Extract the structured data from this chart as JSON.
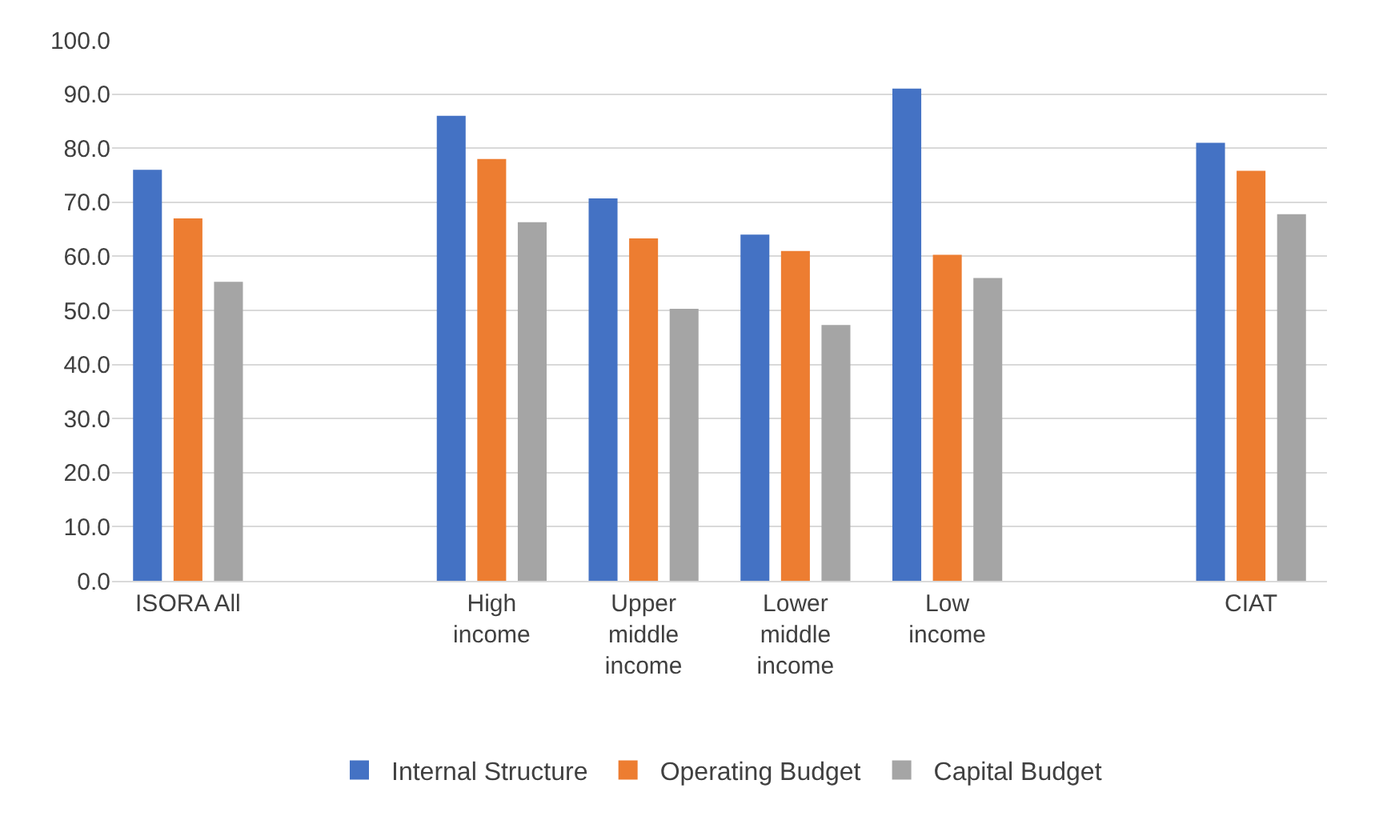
{
  "chart_data": {
    "type": "bar",
    "categories": [
      "ISORA All",
      null,
      "High income",
      "Upper middle income",
      "Lower middle income",
      "Low income",
      null,
      "CIAT"
    ],
    "series": [
      {
        "name": "Internal Structure",
        "color": "#4472c4",
        "values": [
          76,
          null,
          86,
          70.7,
          64,
          91,
          null,
          81
        ]
      },
      {
        "name": "Operating Budget",
        "color": "#ed7d31",
        "values": [
          67,
          null,
          78,
          63.3,
          61,
          60.3,
          null,
          75.8
        ]
      },
      {
        "name": "Capital Budget",
        "color": "#a5a5a5",
        "values": [
          55.3,
          null,
          66.3,
          50.3,
          47.3,
          56,
          null,
          67.8
        ]
      }
    ],
    "ylim": [
      0,
      100
    ],
    "yticks": [
      {
        "value": 0,
        "label": "0.0"
      },
      {
        "value": 10,
        "label": "10.0"
      },
      {
        "value": 20,
        "label": "20.0"
      },
      {
        "value": 30,
        "label": "30.0"
      },
      {
        "value": 40,
        "label": "40.0"
      },
      {
        "value": 50,
        "label": "50.0"
      },
      {
        "value": 60,
        "label": "60.0"
      },
      {
        "value": 70,
        "label": "70.0"
      },
      {
        "value": 80,
        "label": "80.0"
      },
      {
        "value": 90,
        "label": "90.0"
      },
      {
        "value": 100,
        "label": "100.0"
      }
    ],
    "grid": "y",
    "legend": "bottom"
  }
}
